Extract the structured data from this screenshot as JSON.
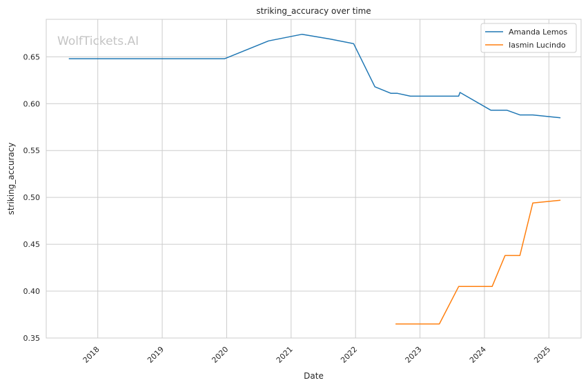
{
  "chart_data": {
    "type": "line",
    "title": "striking_accuracy over time",
    "xlabel": "Date",
    "ylabel": "striking_accuracy",
    "watermark": "WolfTickets.AI",
    "xlim": [
      2017.2,
      2025.5
    ],
    "ylim": [
      0.35,
      0.69
    ],
    "x_ticks": [
      2018,
      2019,
      2020,
      2021,
      2022,
      2023,
      2024,
      2025
    ],
    "x_tick_labels": [
      "2018",
      "2019",
      "2020",
      "2021",
      "2022",
      "2023",
      "2024",
      "2025"
    ],
    "y_ticks": [
      0.35,
      0.4,
      0.45,
      0.5,
      0.55,
      0.6,
      0.65
    ],
    "y_tick_labels": [
      "0.35",
      "0.40",
      "0.45",
      "0.50",
      "0.55",
      "0.60",
      "0.65"
    ],
    "grid": true,
    "legend_position": "top-right",
    "series": [
      {
        "name": "Amanda Lemos",
        "color": "#1f77b4",
        "x": [
          2017.55,
          2019.97,
          2020.65,
          2021.17,
          2021.6,
          2021.97,
          2022.3,
          2022.55,
          2022.65,
          2022.85,
          2023.6,
          2023.62,
          2024.1,
          2024.35,
          2024.55,
          2024.75,
          2025.18
        ],
        "y": [
          0.648,
          0.648,
          0.667,
          0.674,
          0.669,
          0.664,
          0.618,
          0.611,
          0.611,
          0.608,
          0.608,
          0.612,
          0.593,
          0.593,
          0.588,
          0.588,
          0.585
        ]
      },
      {
        "name": "Iasmin Lucindo",
        "color": "#ff7f0e",
        "x": [
          2022.62,
          2023.3,
          2023.6,
          2024.12,
          2024.32,
          2024.55,
          2024.75,
          2025.18
        ],
        "y": [
          0.365,
          0.365,
          0.405,
          0.405,
          0.438,
          0.438,
          0.494,
          0.497
        ]
      }
    ]
  }
}
